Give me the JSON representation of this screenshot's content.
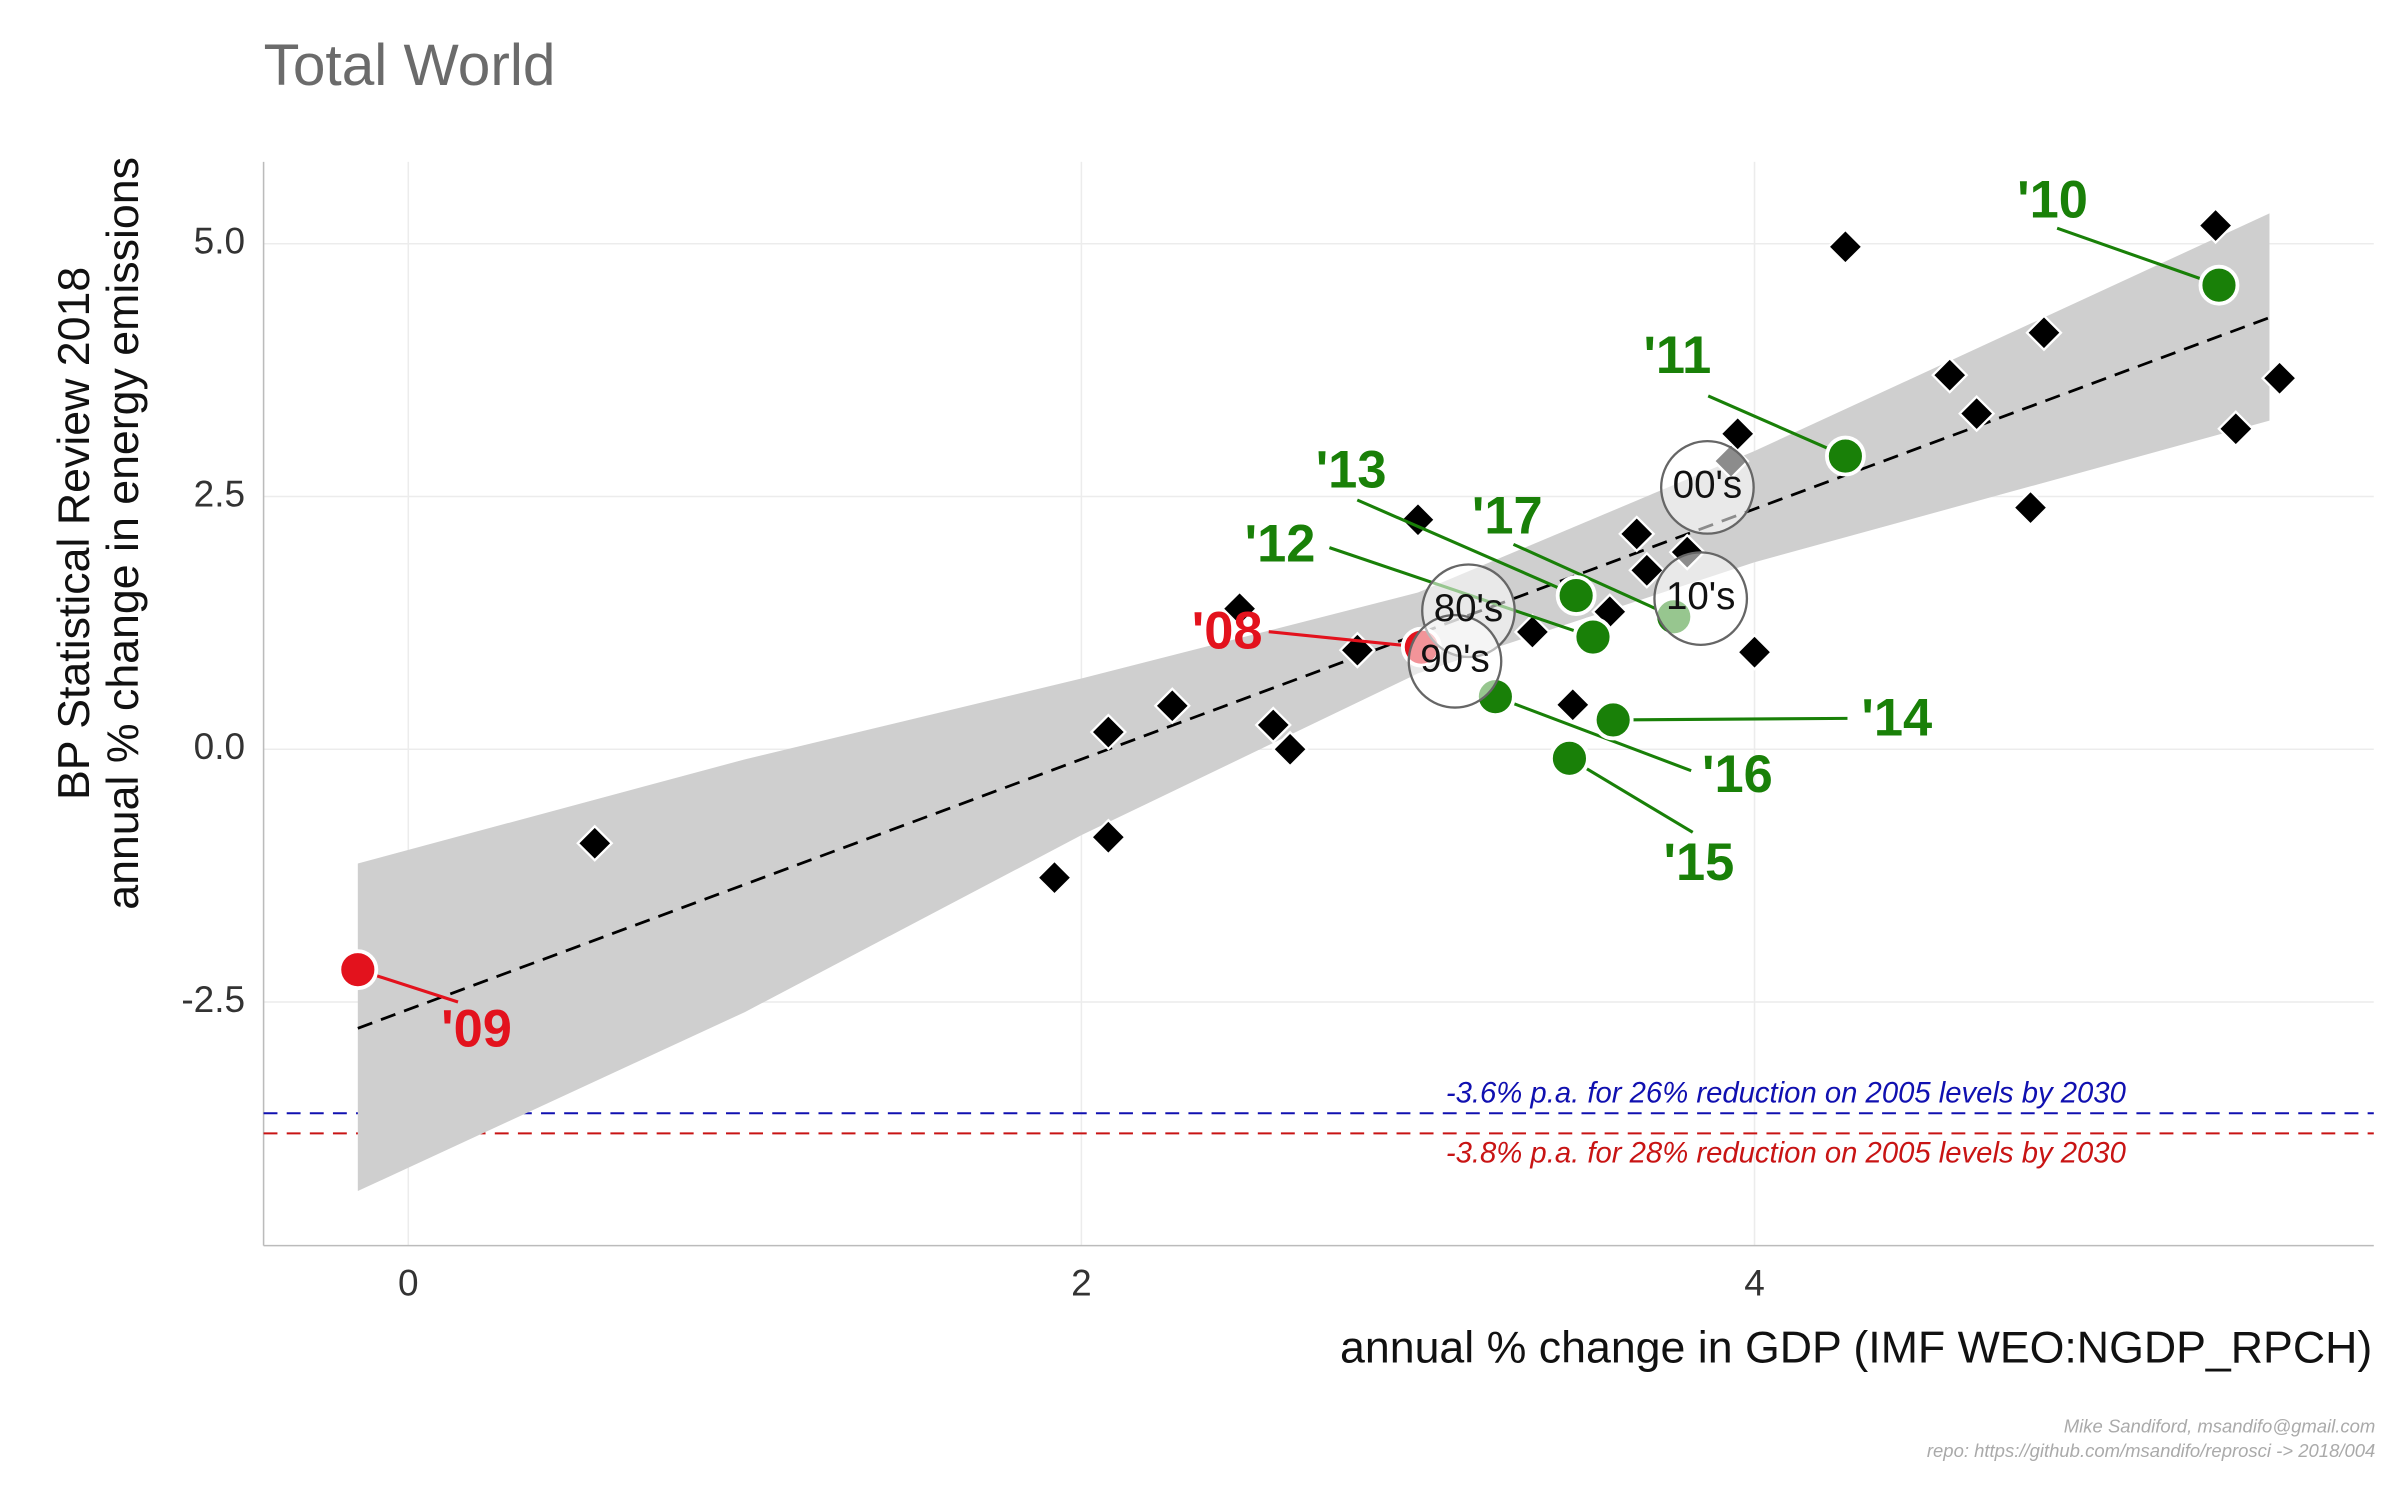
{
  "chart_data": {
    "type": "scatter",
    "title": "Total World",
    "y_label": [
      "BP Statistical Review 2018",
      "annual % change in energy emissions"
    ],
    "x_label": "annual % change in GDP (IMF WEO:NGDP_RPCH)",
    "caption": [
      "Mike Sandiford, msandifo@gmail.com",
      "repo: https://github.com/msandifo/reprosci -> 2018/004"
    ],
    "xlim": [
      -0.43,
      5.84
    ],
    "ylim": [
      -4.91,
      5.81
    ],
    "xticks": [
      0,
      2,
      4
    ],
    "yticks": [
      {
        "value": 5.0,
        "label": "5.0"
      },
      2.5,
      {
        "value": 0.0,
        "label": "0.0"
      },
      -2.5
    ],
    "grid": true,
    "points": {
      "color": "#000000",
      "x": [
        0.554,
        1.92,
        2.08,
        2.08,
        2.27,
        2.47,
        2.57,
        2.62,
        2.82,
        3.0,
        3.34,
        3.46,
        3.57,
        3.65,
        3.68,
        3.8,
        3.93,
        3.95,
        4.0,
        4.27,
        4.58,
        4.66,
        4.82,
        4.86,
        5.37,
        5.43,
        5.56
      ],
      "y": [
        -0.93,
        -1.27,
        -0.87,
        0.17,
        0.43,
        1.39,
        0.24,
        0.0,
        0.98,
        2.27,
        1.16,
        0.44,
        1.36,
        2.13,
        1.77,
        1.95,
        2.85,
        3.12,
        0.96,
        4.97,
        3.7,
        3.32,
        2.39,
        4.12,
        5.18,
        3.17,
        3.67
      ]
    },
    "highlights": {
      "labels": [
        "'08",
        "'09",
        "'10",
        "'11",
        "'12",
        "'13",
        "'14",
        "'15",
        "'16",
        "'17"
      ],
      "x": [
        3.01,
        -0.15,
        5.38,
        4.27,
        3.52,
        3.47,
        3.58,
        3.45,
        3.23,
        3.76
      ],
      "y": [
        1.01,
        -2.18,
        4.59,
        2.9,
        1.11,
        1.52,
        0.29,
        -0.09,
        0.52,
        1.31
      ],
      "colors": [
        "#e3121d",
        "#e3121d",
        "#198008",
        "#198008",
        "#198008",
        "#198008",
        "#198008",
        "#198008",
        "#198008",
        "#198008"
      ]
    },
    "decades": {
      "labels": [
        "80's",
        "90's",
        "00's",
        "10's"
      ],
      "x": [
        3.15,
        3.11,
        3.86,
        3.84
      ],
      "y": [
        1.37,
        0.87,
        2.59,
        1.49
      ]
    },
    "fit": {
      "x": [
        -0.15,
        5.53
      ],
      "y": [
        -2.76,
        4.27
      ]
    },
    "band": {
      "x": [
        -0.15,
        1,
        2,
        3,
        4,
        5.53
      ],
      "lower": [
        -4.37,
        -2.6,
        -0.85,
        0.75,
        1.85,
        3.25
      ],
      "upper": [
        -1.13,
        -0.1,
        0.7,
        1.55,
        2.95,
        5.3
      ]
    },
    "reference_lines": [
      {
        "value": -3.6,
        "label": "-3.6% p.a. for 26% reduction on 2005 levels by 2030",
        "color": "#1010b0"
      },
      {
        "value": -3.8,
        "label": "-3.8% p.a. for 28% reduction on 2005 levels by 2030",
        "color": "#c81414"
      }
    ]
  }
}
